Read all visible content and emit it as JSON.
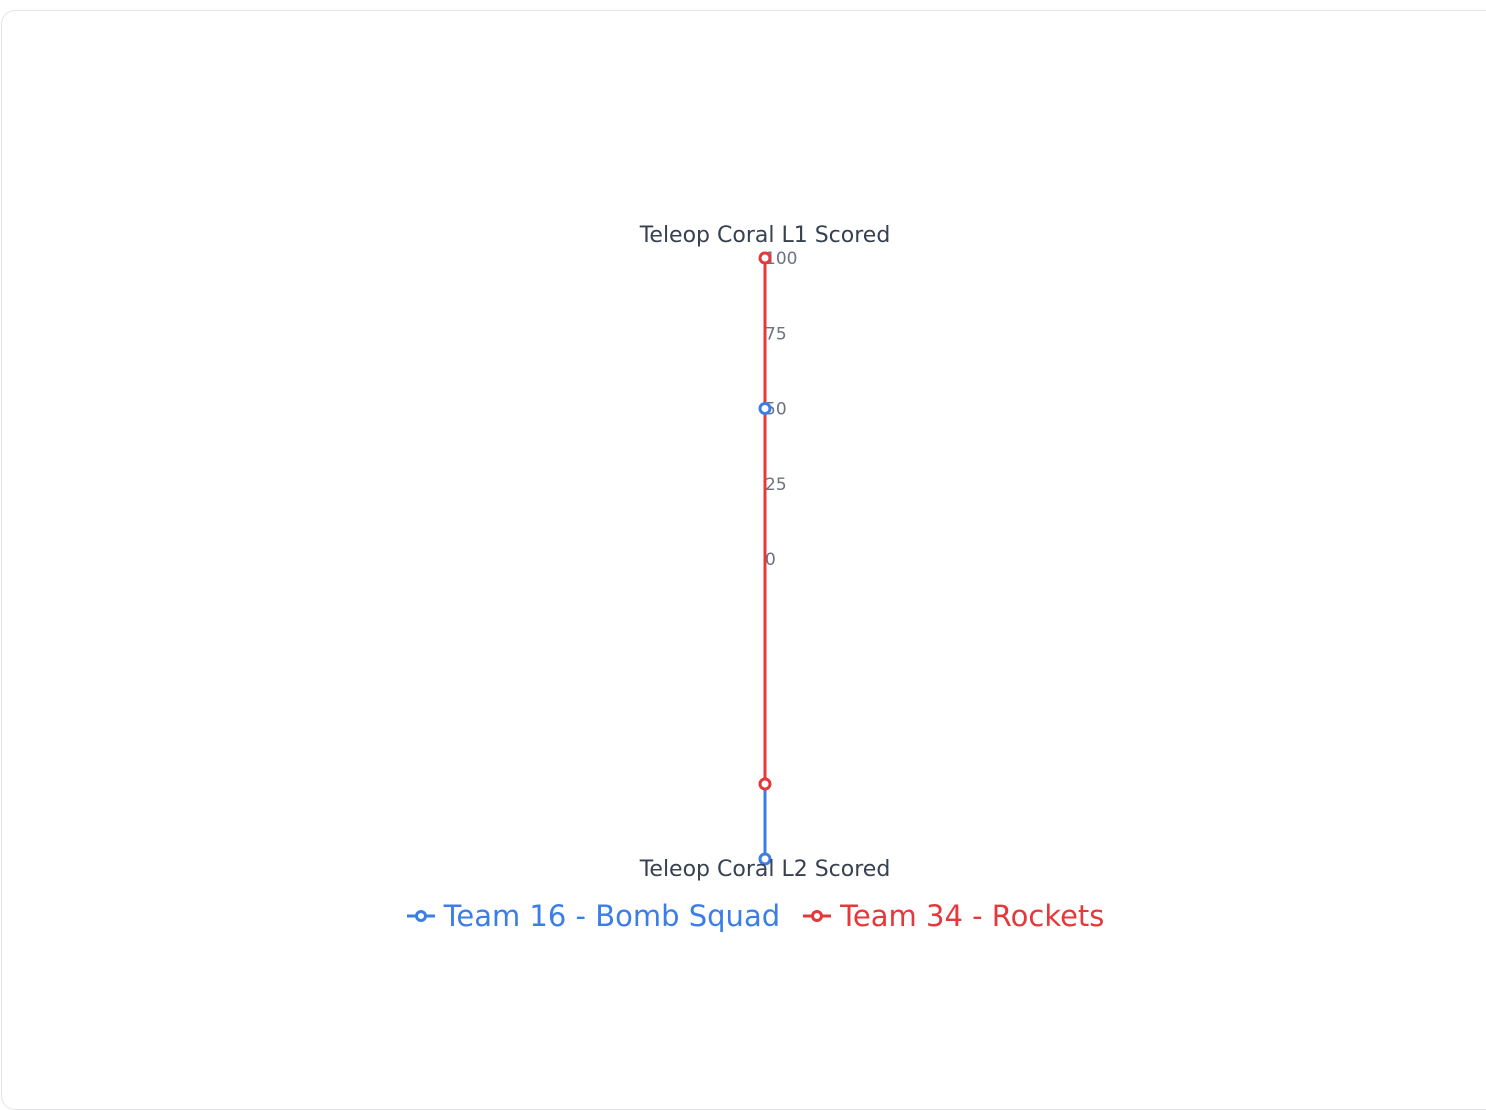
{
  "chart_data": {
    "type": "parallel_coordinates",
    "axes": [
      {
        "label": "Teleop Coral L1 Scored",
        "range": [
          0,
          100
        ],
        "ticks": [
          "0",
          "25",
          "50",
          "75",
          "100"
        ]
      },
      {
        "label": "Teleop Coral L2 Scored",
        "range": [
          0,
          100
        ],
        "ticks": []
      }
    ],
    "series": [
      {
        "name": "Team 16 - Bomb Squad",
        "color": "#3b7ee8",
        "values": [
          50,
          0
        ]
      },
      {
        "name": "Team 34 - Rockets",
        "color": "#e5383b",
        "values": [
          100,
          50
        ]
      }
    ],
    "legend_position": "bottom",
    "grid": false
  }
}
